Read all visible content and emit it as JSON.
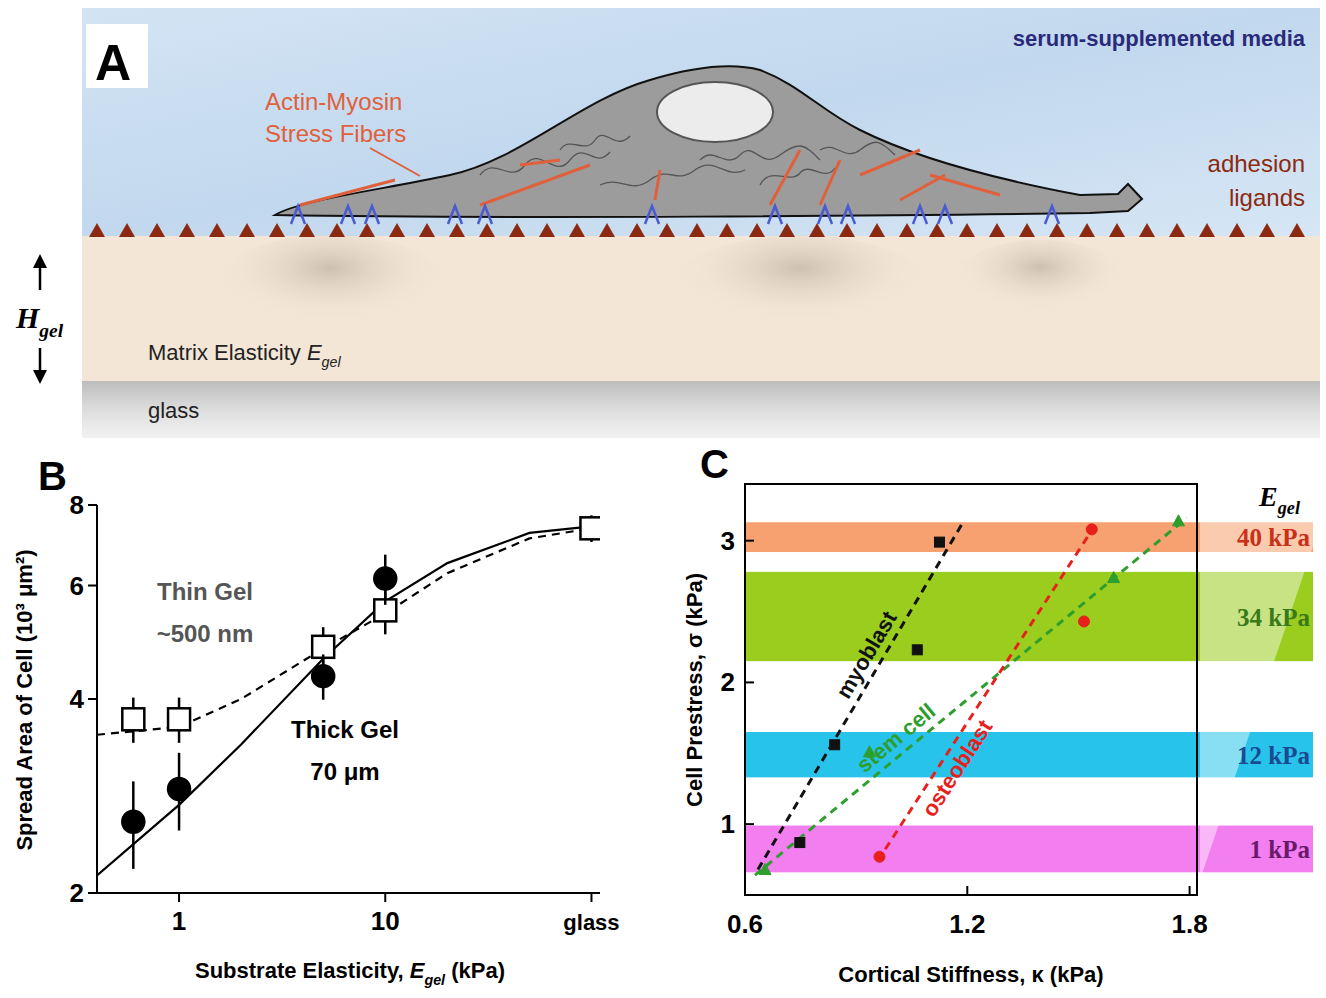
{
  "diagram": {
    "label": "A",
    "medium": "serum-supplemented media",
    "stress_fibers": "Actin-Myosin Stress Fibers",
    "ligands": "adhesion ligands",
    "height": [
      {
        "text": "H",
        "style": "italic"
      },
      {
        "text": "gel",
        "style": "sub"
      }
    ],
    "matrix": [
      {
        "text": "Matrix Elasticity "
      },
      {
        "text": "E",
        "style": "italic"
      },
      {
        "text": "gel",
        "style": "sub"
      }
    ],
    "substrate": "glass"
  },
  "chart_data": [
    {
      "type": "scatter",
      "label": "B",
      "x_label": [
        {
          "text": "Substrate Elasticity, "
        },
        {
          "text": "E",
          "style": "italic"
        },
        {
          "text": "gel",
          "style": "sub"
        },
        {
          "text": " (kPa)"
        }
      ],
      "y_label": "Spread Area of Cell (10³ μm²)",
      "log": true,
      "xlim": [
        0.4,
        110
      ],
      "ylim": [
        2,
        8
      ],
      "xticks": [
        1,
        10,
        {
          "value": 100,
          "label": "glass"
        }
      ],
      "yticks": [
        2,
        4,
        6,
        8
      ],
      "series": [
        {
          "name": "Thin Gel ~500 nm",
          "color": "#000000",
          "marker": "open-square",
          "line_style": "dashed",
          "x": [
            0.6,
            1,
            5,
            10,
            100
          ],
          "values": [
            3.72,
            3.72,
            4.82,
            5.49,
            7.36
          ],
          "errors": [
            0.3,
            0.3,
            0.35,
            0.45,
            0.35
          ],
          "fit": {
            "x": [
              0.4,
              1,
              2,
              5,
              10,
              20,
              50,
              100
            ],
            "values": [
              3.52,
              3.62,
              4.0,
              4.79,
              5.43,
              6.27,
              7.1,
              7.36
            ]
          }
        },
        {
          "name": "Thick Gel 70 μm",
          "color": "#000000",
          "marker": "circle",
          "line_style": "solid",
          "x": [
            0.6,
            1,
            5,
            10
          ],
          "values": [
            2.58,
            2.9,
            4.34,
            6.15
          ],
          "errors": [
            0.4,
            0.4,
            0.35,
            0.55
          ],
          "fit": {
            "x": [
              0.4,
              1,
              2,
              5,
              10,
              20,
              50,
              100
            ],
            "values": [
              2.13,
              2.74,
              3.4,
              4.62,
              5.67,
              6.5,
              7.24,
              7.41
            ]
          }
        }
      ]
    },
    {
      "type": "scatter",
      "label": "C",
      "x_label": "Cortical Stiffness, κ (kPa)",
      "y_label": "Cell Prestress, σ (kPa)",
      "xlim": [
        0.6,
        1.82
      ],
      "ylim": [
        0.5,
        3.4
      ],
      "xticks": [
        0.6,
        1.2,
        1.8
      ],
      "yticks": [
        1,
        2,
        3
      ],
      "series": [
        {
          "name": "myoblast",
          "color": "#111111",
          "marker": "square",
          "line_style": "dashed",
          "x": [
            0.748,
            0.842,
            1.065,
            1.125
          ],
          "values": [
            0.87,
            1.56,
            2.23,
            2.99
          ],
          "fit": {
            "x": [
              0.635,
              1.184
            ],
            "values": [
              0.68,
              3.11
            ]
          }
        },
        {
          "name": "stem cell",
          "color": "#2e9e2e",
          "marker": "triangle",
          "line_style": "dashed",
          "x": [
            0.654,
            0.936,
            1.595,
            1.77
          ],
          "values": [
            0.68,
            1.51,
            2.74,
            3.14
          ],
          "fit": {
            "x": [
              0.627,
              1.792
            ],
            "values": [
              0.64,
              3.16
            ]
          }
        },
        {
          "name": "osteoblast",
          "color": "#e8201c",
          "marker": "circle",
          "line_style": "dashed",
          "x": [
            0.963,
            1.515,
            1.536
          ],
          "values": [
            0.77,
            2.43,
            3.08
          ],
          "fit": {
            "x": [
              0.958,
              1.55
            ],
            "values": [
              0.74,
              3.13
            ]
          }
        }
      ],
      "bands_title": [
        {
          "text": "E",
          "style": "italic"
        },
        {
          "text": "gel",
          "style": "sub"
        }
      ],
      "bands": [
        {
          "label": "40 kPa",
          "range": [
            2.92,
            3.13
          ],
          "color": "#f7a070"
        },
        {
          "label": "34 kPa",
          "range": [
            2.15,
            2.78
          ],
          "color": "#9acd1e"
        },
        {
          "label": "12 kPa",
          "range": [
            1.33,
            1.65
          ],
          "color": "#27c3ea"
        },
        {
          "label": "1 kPa",
          "range": [
            0.66,
            0.99
          ],
          "color": "#f27ef0"
        }
      ]
    }
  ]
}
